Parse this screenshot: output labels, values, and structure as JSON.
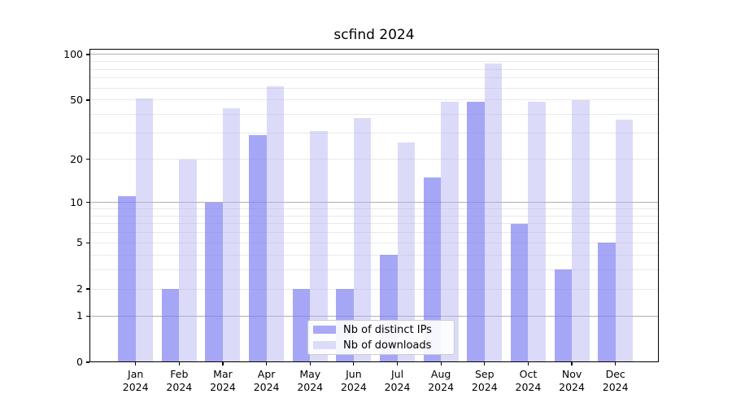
{
  "chart_data": {
    "type": "bar",
    "title": "scfind 2024",
    "categories": [
      "Jan",
      "Feb",
      "Mar",
      "Apr",
      "May",
      "Jun",
      "Jul",
      "Aug",
      "Sep",
      "Oct",
      "Nov",
      "Dec"
    ],
    "x_label_line2": "2024",
    "series": [
      {
        "name": "Nb of distinct IPs",
        "color": "rgba(128,128,242,0.7)",
        "legend_color": "#a9a9f4",
        "values": [
          11,
          2,
          10,
          29,
          2,
          2,
          4,
          15,
          49,
          7,
          3,
          5
        ]
      },
      {
        "name": "Nb of downloads",
        "color": "rgba(175,175,242,0.45)",
        "legend_color": "#dcdcf8",
        "values": [
          51,
          20,
          44,
          62,
          31,
          38,
          26,
          49,
          87,
          49,
          50,
          37
        ]
      }
    ],
    "yscale": "log1p",
    "ylim": [
      0,
      110
    ],
    "y_tick_labels": [
      "100",
      "50",
      "20",
      "10",
      "5",
      "2",
      "1",
      "0"
    ],
    "y_tick_values": [
      100,
      50,
      20,
      10,
      5,
      2,
      1,
      0
    ],
    "y_major_gridlines": [
      1,
      10,
      100
    ],
    "y_minor_gridlines": [
      2,
      3,
      4,
      5,
      6,
      7,
      8,
      9,
      20,
      30,
      40,
      50,
      60,
      70,
      80,
      90
    ],
    "grid_major_color": "#b0b0b0",
    "grid_minor_color": "#e9e9e9",
    "legend_position": "lower center",
    "grid": "on"
  }
}
